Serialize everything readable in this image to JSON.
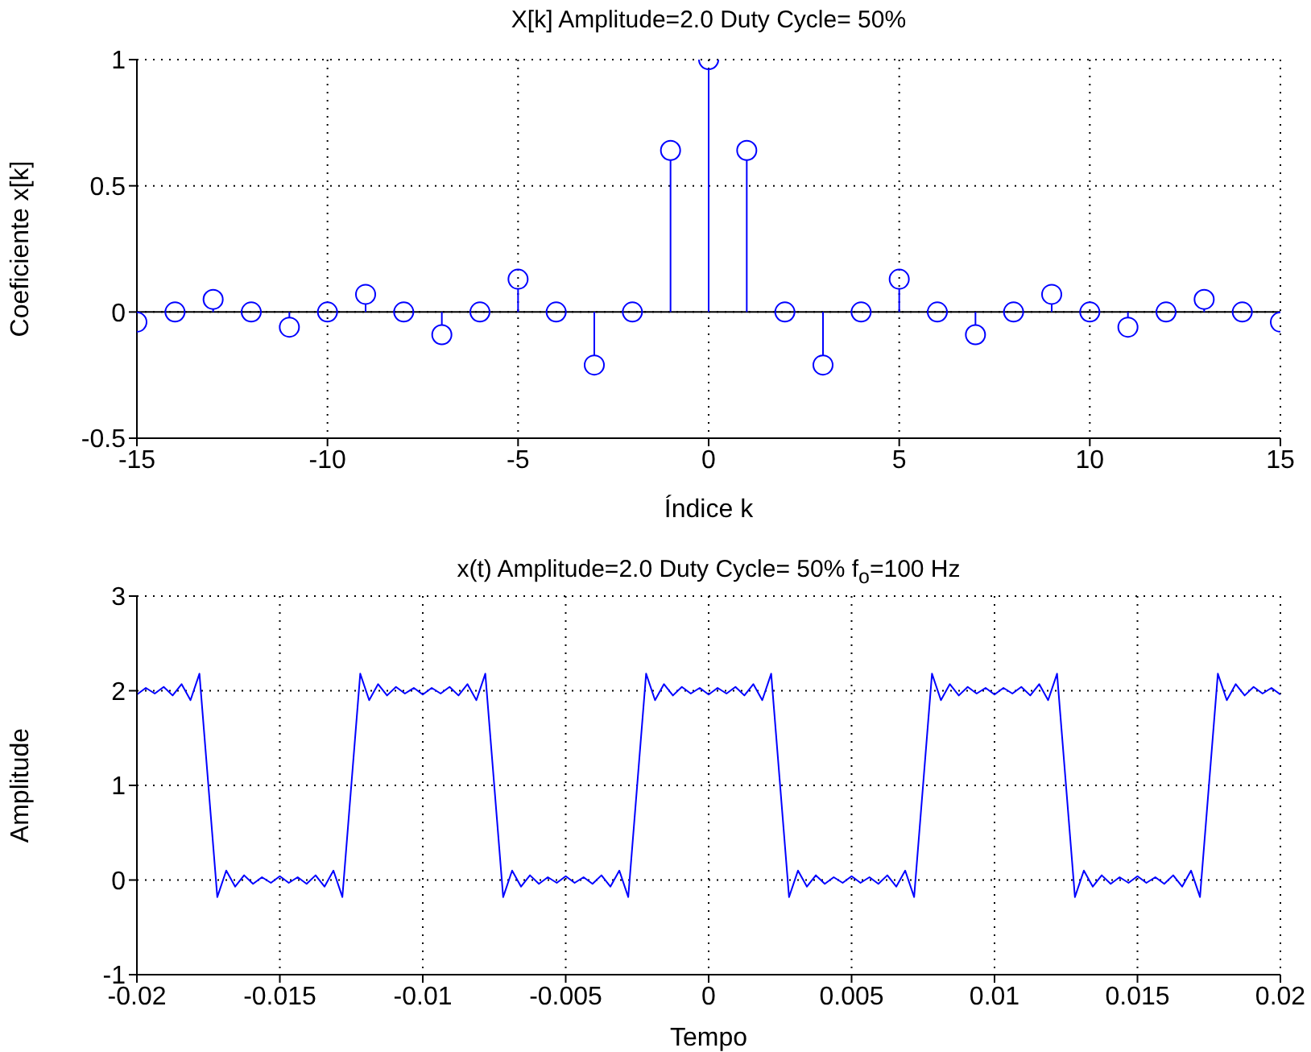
{
  "chart_data": [
    {
      "type": "lollipop",
      "title": "X[k] Amplitude=2.0 Duty Cycle= 50%",
      "xlabel": "Índice k",
      "ylabel": "Coeficiente x[k]",
      "color": "#0000ff",
      "marker": "circle",
      "grid": true,
      "x": [
        -15,
        -14,
        -13,
        -12,
        -11,
        -10,
        -9,
        -8,
        -7,
        -6,
        -5,
        -4,
        -3,
        -2,
        -1,
        0,
        1,
        2,
        3,
        4,
        5,
        6,
        7,
        8,
        9,
        10,
        11,
        12,
        13,
        14,
        15
      ],
      "values": [
        -0.04,
        0,
        0.05,
        0,
        -0.06,
        0,
        0.07,
        0,
        -0.09,
        0,
        0.13,
        0,
        -0.21,
        0,
        0.64,
        1,
        0.64,
        0,
        -0.21,
        0,
        0.13,
        0,
        -0.09,
        0,
        0.07,
        0,
        -0.06,
        0,
        0.05,
        0,
        -0.04
      ],
      "xlim": [
        -15,
        15
      ],
      "xticks": [
        -15,
        -10,
        -5,
        0,
        5,
        10,
        15
      ],
      "ylim": [
        -0.5,
        1
      ],
      "yticks": [
        -0.5,
        0,
        0.5,
        1
      ],
      "ref_lines": [
        {
          "axis": "y",
          "value": 0,
          "color": "#000000"
        }
      ]
    },
    {
      "type": "line",
      "title": "x(t) Amplitude=2.0 Duty Cycle= 50% f$_{o}$=100 Hz",
      "xlabel": "Tempo",
      "ylabel": "Amplitude",
      "color": "#0000ff",
      "line_style": "solid",
      "grid": true,
      "x": [
        -0.02,
        -0.0196875,
        -0.019375,
        -0.0190625,
        -0.01875,
        -0.0184375,
        -0.018125,
        -0.0178125,
        -0.0175,
        -0.0171875,
        -0.016875,
        -0.0165625,
        -0.01625,
        -0.0159375,
        -0.015625,
        -0.0153125,
        -0.015,
        -0.0146875,
        -0.014375,
        -0.0140625,
        -0.01375,
        -0.0134375,
        -0.013125,
        -0.0128125,
        -0.0125,
        -0.0121875,
        -0.011875,
        -0.0115625,
        -0.01125,
        -0.0109375,
        -0.010625,
        -0.0103125,
        -0.01,
        -0.0096875,
        -0.009375,
        -0.0090625,
        -0.00875,
        -0.0084375,
        -0.008125,
        -0.0078125,
        -0.0075,
        -0.0071875,
        -0.006875,
        -0.0065625,
        -0.00625,
        -0.0059375,
        -0.005625,
        -0.0053125,
        -0.005,
        -0.0046875,
        -0.004375,
        -0.0040625,
        -0.00375,
        -0.0034375,
        -0.003125,
        -0.0028125,
        -0.0025,
        -0.0021875,
        -0.001875,
        -0.0015625,
        -0.00125,
        -0.0009375,
        -0.000625,
        -0.0003125,
        0,
        0.0003125,
        0.000625,
        0.0009375,
        0.00125,
        0.0015625,
        0.001875,
        0.0021875,
        0.0025,
        0.0028125,
        0.003125,
        0.0034375,
        0.00375,
        0.0040625,
        0.004375,
        0.0046875,
        0.005,
        0.0053125,
        0.005625,
        0.0059375,
        0.00625,
        0.0065625,
        0.006875,
        0.0071875,
        0.0075,
        0.0078125,
        0.008125,
        0.0084375,
        0.00875,
        0.0090625,
        0.009375,
        0.0096875,
        0.01,
        0.0103125,
        0.010625,
        0.0109375,
        0.01125,
        0.0115625,
        0.011875,
        0.0121875,
        0.0125,
        0.0128125,
        0.013125,
        0.0134375,
        0.01375,
        0.0140625,
        0.014375,
        0.0146875,
        0.015,
        0.0153125,
        0.015625,
        0.0159375,
        0.01625,
        0.0165625,
        0.016875,
        0.0171875,
        0.0175,
        0.0178125,
        0.018125,
        0.0184375,
        0.01875,
        0.0190625,
        0.019375,
        0.0196875,
        0.02
      ],
      "values": [
        1.96,
        2.03,
        1.97,
        2.04,
        1.95,
        2.07,
        1.9,
        2.18,
        1,
        -0.18,
        0.1,
        -0.07,
        0.05,
        -0.04,
        0.03,
        -0.03,
        0.04,
        -0.03,
        0.03,
        -0.04,
        0.05,
        -0.07,
        0.1,
        -0.18,
        1,
        2.18,
        1.9,
        2.07,
        1.95,
        2.04,
        1.97,
        2.03,
        1.96,
        2.03,
        1.97,
        2.04,
        1.95,
        2.07,
        1.9,
        2.18,
        1,
        -0.18,
        0.1,
        -0.07,
        0.05,
        -0.04,
        0.03,
        -0.03,
        0.04,
        -0.03,
        0.03,
        -0.04,
        0.05,
        -0.07,
        0.1,
        -0.18,
        1,
        2.18,
        1.9,
        2.07,
        1.95,
        2.04,
        1.97,
        2.03,
        1.96,
        2.03,
        1.97,
        2.04,
        1.95,
        2.07,
        1.9,
        2.18,
        1,
        -0.18,
        0.1,
        -0.07,
        0.05,
        -0.04,
        0.03,
        -0.03,
        0.04,
        -0.03,
        0.03,
        -0.04,
        0.05,
        -0.07,
        0.1,
        -0.18,
        1,
        2.18,
        1.9,
        2.07,
        1.95,
        2.04,
        1.97,
        2.03,
        1.96,
        2.03,
        1.97,
        2.04,
        1.95,
        2.07,
        1.9,
        2.18,
        1,
        -0.18,
        0.1,
        -0.07,
        0.05,
        -0.04,
        0.03,
        -0.03,
        0.04,
        -0.03,
        0.03,
        -0.04,
        0.05,
        -0.07,
        0.1,
        -0.18,
        1,
        2.18,
        1.9,
        2.07,
        1.95,
        2.04,
        1.97,
        2.03,
        1.96
      ],
      "xlim": [
        -0.02,
        0.02
      ],
      "xticks": [
        -0.02,
        -0.015,
        -0.01,
        -0.005,
        0,
        0.005,
        0.01,
        0.015,
        0.02
      ],
      "ylim": [
        -1,
        3
      ],
      "yticks": [
        -1,
        0,
        1,
        2,
        3
      ]
    }
  ]
}
